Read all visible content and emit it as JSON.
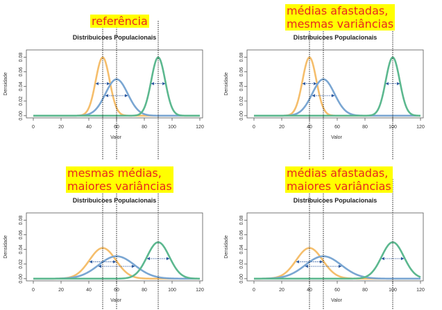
{
  "colors": {
    "orange": "#f5be6c",
    "blue": "#7aa6d2",
    "green": "#5cb88f",
    "arrow": "#2d5aa0",
    "banner_bg": "#ffff00",
    "banner_text": "#e8281e"
  },
  "chart_data": [
    {
      "type": "line",
      "banner": "referência",
      "title": "Distribuicoes Populacionais",
      "xlabel": "Valor",
      "ylabel": "Densidade",
      "xlim": [
        -5,
        122
      ],
      "ylim": [
        -0.003,
        0.09
      ],
      "xticks": [
        0,
        20,
        40,
        60,
        80,
        100,
        120
      ],
      "yticks": [
        "0.00",
        "0.02",
        "0.04",
        "0.06",
        "0.08"
      ],
      "series": [
        {
          "color": "orange",
          "mean": 50,
          "sd": 5
        },
        {
          "color": "blue",
          "mean": 60,
          "sd": 8
        },
        {
          "color": "green",
          "mean": 90,
          "sd": 5
        }
      ],
      "vlines": [
        50,
        60,
        90
      ]
    },
    {
      "type": "line",
      "banner": "médias afastadas,\nmesmas variâncias",
      "title": "Distribuicoes Populacionais",
      "xlabel": "Valor",
      "ylabel": "Densidade",
      "xlim": [
        -5,
        122
      ],
      "ylim": [
        -0.003,
        0.09
      ],
      "xticks": [
        0,
        20,
        40,
        60,
        80,
        100,
        120
      ],
      "yticks": [
        "0.00",
        "0.02",
        "0.04",
        "0.06",
        "0.08"
      ],
      "series": [
        {
          "color": "orange",
          "mean": 40,
          "sd": 5
        },
        {
          "color": "blue",
          "mean": 50,
          "sd": 8
        },
        {
          "color": "green",
          "mean": 100,
          "sd": 5
        }
      ],
      "vlines": [
        40,
        50,
        100
      ]
    },
    {
      "type": "line",
      "banner": "mesmas médias,\nmaiores variâncias",
      "title": "Distribuicoes Populacionais",
      "xlabel": "Valor",
      "ylabel": "Densidade",
      "xlim": [
        -5,
        122
      ],
      "ylim": [
        -0.003,
        0.09
      ],
      "xticks": [
        0,
        20,
        40,
        60,
        80,
        100,
        120
      ],
      "yticks": [
        "0.00",
        "0.02",
        "0.04",
        "0.06",
        "0.08"
      ],
      "series": [
        {
          "color": "orange",
          "mean": 50,
          "sd": 9.5
        },
        {
          "color": "blue",
          "mean": 60,
          "sd": 13
        },
        {
          "color": "green",
          "mean": 90,
          "sd": 8
        }
      ],
      "vlines": [
        50,
        60,
        90
      ]
    },
    {
      "type": "line",
      "banner": "médias afastadas,\nmaiores variâncias",
      "title": "Distribuicoes Populacionais",
      "xlabel": "Valor",
      "ylabel": "Densidade",
      "xlim": [
        -5,
        122
      ],
      "ylim": [
        -0.003,
        0.09
      ],
      "xticks": [
        0,
        20,
        40,
        60,
        80,
        100,
        120
      ],
      "yticks": [
        "0.00",
        "0.02",
        "0.04",
        "0.06",
        "0.08"
      ],
      "series": [
        {
          "color": "orange",
          "mean": 40,
          "sd": 9.5
        },
        {
          "color": "blue",
          "mean": 50,
          "sd": 13
        },
        {
          "color": "green",
          "mean": 100,
          "sd": 8
        }
      ],
      "vlines": [
        40,
        50,
        100
      ]
    }
  ]
}
